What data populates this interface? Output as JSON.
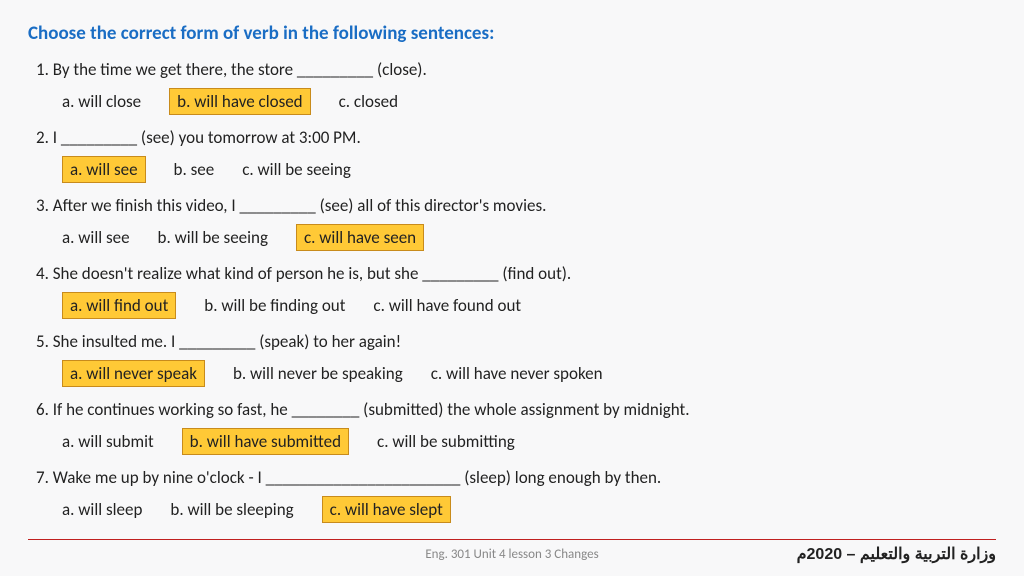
{
  "title": "Choose the correct form of verb in the following sentences:",
  "questions": [
    {
      "q": "1. By the time we get there, the store _________ (close).",
      "opts": [
        {
          "t": "a. will close",
          "hl": false
        },
        {
          "t": "b. will have closed",
          "hl": true
        },
        {
          "t": "c. closed",
          "hl": false
        }
      ]
    },
    {
      "q": "2. I _________ (see) you tomorrow at 3:00 PM.",
      "opts": [
        {
          "t": "a. will see",
          "hl": true
        },
        {
          "t": "b. see",
          "hl": false
        },
        {
          "t": "c. will be seeing",
          "hl": false
        }
      ]
    },
    {
      "q": "3. After we finish this video, I _________ (see) all of this director's movies.",
      "opts": [
        {
          "t": "a. will see",
          "hl": false
        },
        {
          "t": "b.  will be seeing",
          "hl": false
        },
        {
          "t": "c. will have seen",
          "hl": true
        }
      ]
    },
    {
      "q": "4. She doesn't realize what kind of person he is, but she _________ (find out).",
      "opts": [
        {
          "t": "a. will find out",
          "hl": true
        },
        {
          "t": "b. will be finding out",
          "hl": false
        },
        {
          "t": "c. will have found out",
          "hl": false
        }
      ]
    },
    {
      "q": "5. She insulted me. I _________ (speak) to her again!",
      "opts": [
        {
          "t": "a.  will never speak",
          "hl": true
        },
        {
          "t": "b.  will never be speaking",
          "hl": false
        },
        {
          "t": "c.  will have never spoken",
          "hl": false
        }
      ]
    },
    {
      "q": "6. If he continues working so fast, he ________ (submitted) the whole assignment by midnight.",
      "opts": [
        {
          "t": "a. will submit",
          "hl": false
        },
        {
          "t": "b. will have submitted",
          "hl": true
        },
        {
          "t": "c.  will be submitting",
          "hl": false
        }
      ]
    },
    {
      "q": "7. Wake me up by nine o'clock - I _______________________ (sleep) long enough by then.",
      "opts": [
        {
          "t": "a. will sleep",
          "hl": false
        },
        {
          "t": "b. will be sleeping",
          "hl": false
        },
        {
          "t": "c. will have slept",
          "hl": true
        }
      ]
    }
  ],
  "footer_center": "Eng. 301 Unit 4 lesson 3 Changes",
  "footer_right": "وزارة التربية والتعليم – 2020م",
  "colors": {
    "title": "#1a6dc4",
    "highlight_bg": "#ffc936",
    "highlight_border": "#c88b1c",
    "rule": "#c02020",
    "bg": "#f8f8f9"
  }
}
